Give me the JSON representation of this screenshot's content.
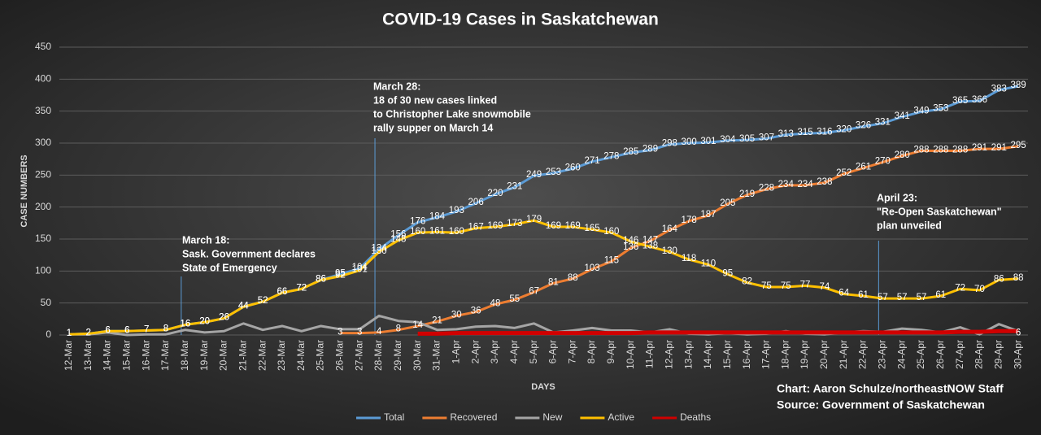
{
  "chart_data": {
    "type": "line",
    "title": "COVID-19 Cases in Saskatchewan",
    "x_label": "DAYS",
    "y_label": "CASE NUMBERS",
    "categories": [
      "12-Mar",
      "13-Mar",
      "14-Mar",
      "15-Mar",
      "16-Mar",
      "17-Mar",
      "18-Mar",
      "19-Mar",
      "20-Mar",
      "21-Mar",
      "22-Mar",
      "23-Mar",
      "24-Mar",
      "25-Mar",
      "26-Mar",
      "27-Mar",
      "28-Mar",
      "29-Mar",
      "30-Mar",
      "31-Mar",
      "1-Apr",
      "2-Apr",
      "3-Apr",
      "4-Apr",
      "5-Apr",
      "6-Apr",
      "7-Apr",
      "8-Apr",
      "9-Apr",
      "10-Apr",
      "11-Apr",
      "12-Apr",
      "13-Apr",
      "14-Apr",
      "15-Apr",
      "16-Apr",
      "17-Apr",
      "18-Apr",
      "19-Apr",
      "20-Apr",
      "21-Apr",
      "22-Apr",
      "23-Apr",
      "24-Apr",
      "25-Apr",
      "26-Apr",
      "27-Apr",
      "28-Apr",
      "29-Apr",
      "30-Apr"
    ],
    "series": [
      {
        "name": "Total",
        "color": "#5b9bd5",
        "data_labels": "all",
        "values": [
          1,
          2,
          6,
          6,
          7,
          8,
          16,
          20,
          26,
          44,
          52,
          66,
          72,
          86,
          95,
          104,
          134,
          156,
          176,
          184,
          193,
          206,
          220,
          231,
          249,
          253,
          260,
          271,
          278,
          285,
          289,
          298,
          300,
          301,
          304,
          305,
          307,
          313,
          315,
          316,
          320,
          326,
          331,
          341,
          349,
          353,
          365,
          366,
          383,
          389
        ]
      },
      {
        "name": "Recovered",
        "color": "#ed7d31",
        "data_labels": "all",
        "values": [
          null,
          null,
          null,
          null,
          null,
          null,
          null,
          null,
          null,
          null,
          null,
          null,
          null,
          null,
          3,
          3,
          4,
          8,
          14,
          21,
          30,
          36,
          48,
          55,
          67,
          81,
          88,
          103,
          115,
          136,
          147,
          164,
          178,
          187,
          205,
          219,
          228,
          234,
          234,
          238,
          252,
          261,
          270,
          280,
          288,
          288,
          288,
          291,
          291,
          295
        ]
      },
      {
        "name": "New",
        "color": "#a5a5a5",
        "data_labels": "none",
        "values": [
          1,
          1,
          4,
          0,
          1,
          1,
          8,
          4,
          6,
          18,
          8,
          14,
          6,
          14,
          9,
          9,
          30,
          22,
          20,
          8,
          9,
          13,
          14,
          11,
          18,
          4,
          7,
          11,
          7,
          7,
          4,
          9,
          2,
          1,
          3,
          1,
          2,
          6,
          2,
          1,
          4,
          6,
          5,
          10,
          8,
          4,
          12,
          1,
          17,
          6
        ]
      },
      {
        "name": "Active",
        "color": "#ffc000",
        "data_labels": "all",
        "values": [
          1,
          2,
          6,
          6,
          7,
          8,
          16,
          20,
          26,
          44,
          52,
          66,
          72,
          86,
          92,
          101,
          130,
          148,
          160,
          161,
          160,
          167,
          169,
          173,
          179,
          169,
          169,
          165,
          160,
          146,
          138,
          130,
          118,
          110,
          95,
          82,
          75,
          75,
          77,
          74,
          64,
          61,
          57,
          57,
          57,
          61,
          72,
          70,
          86,
          88
        ]
      },
      {
        "name": "Deaths",
        "color": "#d00000",
        "data_labels": "last",
        "values": [
          null,
          null,
          null,
          null,
          null,
          null,
          null,
          null,
          null,
          null,
          null,
          null,
          null,
          null,
          null,
          null,
          null,
          null,
          2,
          2,
          3,
          3,
          3,
          3,
          3,
          3,
          3,
          3,
          3,
          3,
          4,
          4,
          4,
          4,
          4,
          4,
          4,
          4,
          4,
          4,
          4,
          4,
          4,
          4,
          4,
          4,
          5,
          5,
          6,
          6
        ]
      }
    ],
    "ylim": [
      0,
      450
    ],
    "yticks": [
      0,
      50,
      100,
      150,
      200,
      250,
      300,
      350,
      400,
      450
    ],
    "grid": true,
    "legend": "bottom",
    "annotations": [
      {
        "x": "18-Mar",
        "lines": [
          "March 18:",
          "Sask. Government declares",
          "State of Emergency"
        ]
      },
      {
        "x": "28-Mar",
        "lines": [
          "March 28:",
          "18 of 30 new cases linked",
          "to Christopher Lake snowmobile",
          "rally supper on March 14"
        ]
      },
      {
        "x": "23-Apr",
        "lines": [
          "April 23:",
          "\"Re-Open Saskatchewan\"",
          "plan unveiled"
        ]
      }
    ],
    "credits": [
      "Chart: Aaron Schulze/northeastNOW Staff",
      "Source: Government of Saskatchewan"
    ]
  }
}
